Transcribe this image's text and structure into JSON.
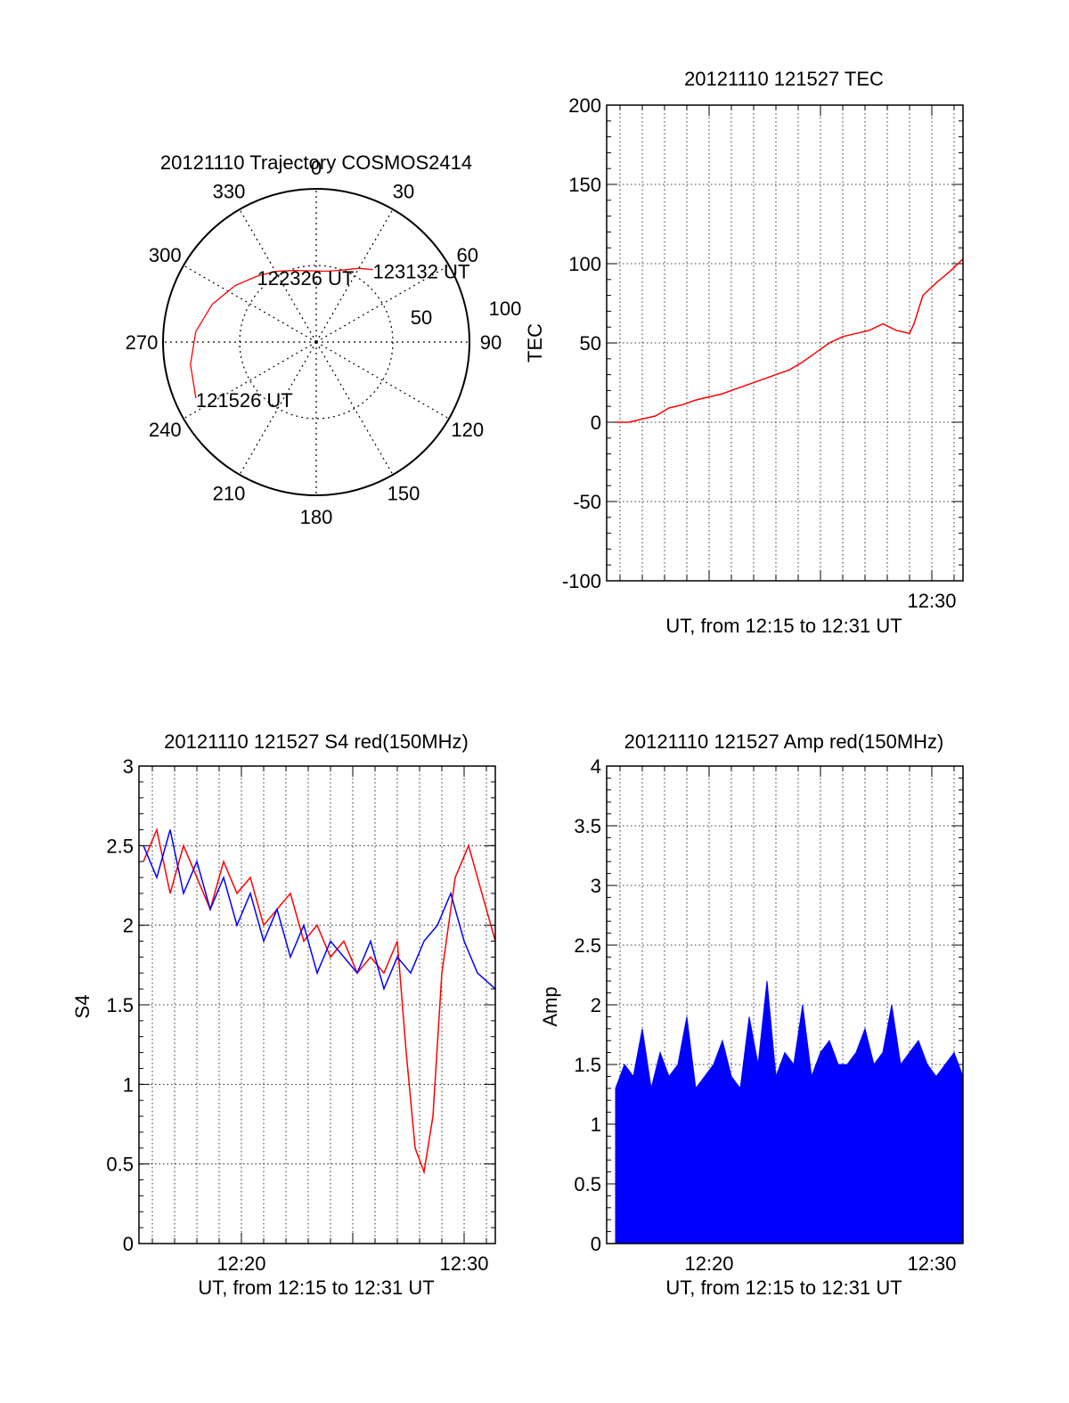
{
  "chart_data": [
    {
      "type": "polar",
      "title": "20121110 Trajectory COSMOS2414",
      "azimuth_labels": [
        "0",
        "30",
        "60",
        "90",
        "120",
        "150",
        "180",
        "210",
        "240",
        "270",
        "300",
        "330"
      ],
      "elevation_labels": [
        "100",
        "50"
      ],
      "series": [
        {
          "color": "#ff0000",
          "points": [
            {
              "az": 245,
              "el": 12
            },
            {
              "az": 260,
              "el": 15
            },
            {
              "az": 275,
              "el": 19
            },
            {
              "az": 290,
              "el": 25
            },
            {
              "az": 305,
              "el": 32
            },
            {
              "az": 318,
              "el": 38
            },
            {
              "az": 330,
              "el": 42
            },
            {
              "az": 343,
              "el": 46
            },
            {
              "az": 355,
              "el": 48
            },
            {
              "az": 8,
              "el": 48
            },
            {
              "az": 20,
              "el": 45
            },
            {
              "az": 30,
              "el": 40
            },
            {
              "az": 38,
              "el": 36
            }
          ]
        }
      ],
      "annotations": [
        {
          "text": "121526 UT",
          "az": 245,
          "el": 12
        },
        {
          "text": "122326 UT",
          "az": 318,
          "el": 38
        },
        {
          "text": "123132 UT",
          "az": 38,
          "el": 36
        }
      ]
    },
    {
      "type": "line",
      "title": "20121110 121527 TEC",
      "xlabel": "UT, from 12:15 to 12:31 UT",
      "ylabel": "TEC",
      "xlim": [
        15.4,
        31.4
      ],
      "ylim": [
        -100,
        200
      ],
      "yticks": [
        "-100",
        "-50",
        "0",
        "50",
        "100",
        "150",
        "200"
      ],
      "xticks": [
        {
          "value": 30,
          "label": "12:30"
        }
      ],
      "grid": true,
      "series": [
        {
          "color": "#ff0000",
          "x": [
            15.8,
            16.4,
            17,
            17.6,
            18.2,
            18.8,
            19.4,
            20,
            20.6,
            21.2,
            21.8,
            22.4,
            23,
            23.6,
            24.2,
            24.8,
            25.4,
            26,
            26.6,
            27.2,
            27.8,
            28.4,
            29,
            29.2,
            29.6,
            30.2,
            30.8,
            31.4
          ],
          "y": [
            0,
            0,
            2,
            4,
            9,
            11,
            14,
            16,
            18,
            21,
            24,
            27,
            30,
            33,
            38,
            44,
            50,
            54,
            56,
            58,
            62,
            58,
            56,
            62,
            80,
            88,
            95,
            103
          ]
        }
      ]
    },
    {
      "type": "line",
      "title": "20121110 121527 S4 red(150MHz)",
      "xlabel": "UT, from 12:15 to 12:31 UT",
      "ylabel": "S4",
      "xlim": [
        15.4,
        31.4
      ],
      "ylim": [
        0,
        3
      ],
      "yticks": [
        "0",
        "0.5",
        "1",
        "1.5",
        "2",
        "2.5",
        "3"
      ],
      "xticks": [
        {
          "value": 20,
          "label": "12:20"
        },
        {
          "value": 30,
          "label": "12:30"
        }
      ],
      "grid": true,
      "series": [
        {
          "color": "#ff0000",
          "x": [
            15.6,
            16.2,
            16.8,
            17.4,
            18,
            18.6,
            19.2,
            19.8,
            20.4,
            21,
            21.6,
            22.2,
            22.8,
            23.4,
            24,
            24.6,
            25.2,
            25.8,
            26.4,
            27,
            27.4,
            27.8,
            28.2,
            28.6,
            29,
            29.6,
            30.2,
            30.8,
            31.4
          ],
          "y": [
            2.4,
            2.6,
            2.2,
            2.5,
            2.3,
            2.1,
            2.4,
            2.2,
            2.3,
            2.0,
            2.1,
            2.2,
            1.9,
            2.0,
            1.8,
            1.9,
            1.7,
            1.8,
            1.7,
            1.9,
            1.2,
            0.6,
            0.45,
            0.8,
            1.7,
            2.3,
            2.5,
            2.2,
            1.9
          ]
        },
        {
          "color": "#0000ff",
          "x": [
            15.6,
            16.2,
            16.8,
            17.4,
            18,
            18.6,
            19.2,
            19.8,
            20.4,
            21,
            21.6,
            22.2,
            22.8,
            23.4,
            24,
            24.6,
            25.2,
            25.8,
            26.4,
            27,
            27.6,
            28.2,
            28.8,
            29.4,
            30,
            30.6,
            31.4
          ],
          "y": [
            2.5,
            2.3,
            2.6,
            2.2,
            2.4,
            2.1,
            2.3,
            2.0,
            2.2,
            1.9,
            2.1,
            1.8,
            2.0,
            1.7,
            1.9,
            1.8,
            1.7,
            1.9,
            1.6,
            1.8,
            1.7,
            1.9,
            2.0,
            2.2,
            1.9,
            1.7,
            1.6
          ]
        }
      ]
    },
    {
      "type": "area",
      "title": "20121110 121527 Amp red(150MHz)",
      "xlabel": "UT, from 12:15 to 12:31 UT",
      "ylabel": "Amp",
      "xlim": [
        15.4,
        31.4
      ],
      "ylim": [
        0,
        4
      ],
      "yticks": [
        "0",
        "0.5",
        "1",
        "1.5",
        "2",
        "2.5",
        "3",
        "3.5",
        "4"
      ],
      "xticks": [
        {
          "value": 20,
          "label": "12:20"
        },
        {
          "value": 30,
          "label": "12:30"
        }
      ],
      "grid": true,
      "series": [
        {
          "color": "#0000ff",
          "x": [
            15.8,
            16.2,
            16.6,
            17,
            17.4,
            17.8,
            18.2,
            18.6,
            19,
            19.4,
            19.8,
            20.2,
            20.6,
            21,
            21.4,
            21.8,
            22.2,
            22.6,
            23,
            23.4,
            23.8,
            24.2,
            24.6,
            25,
            25.4,
            25.8,
            26.2,
            26.6,
            27,
            27.4,
            27.8,
            28.2,
            28.6,
            29,
            29.4,
            29.8,
            30.2,
            30.6,
            31,
            31.4
          ],
          "y": [
            1.3,
            1.5,
            1.4,
            1.8,
            1.3,
            1.6,
            1.4,
            1.5,
            1.9,
            1.3,
            1.4,
            1.5,
            1.7,
            1.4,
            1.3,
            1.9,
            1.5,
            2.2,
            1.4,
            1.6,
            1.5,
            2.0,
            1.4,
            1.6,
            1.7,
            1.5,
            1.5,
            1.6,
            1.8,
            1.5,
            1.6,
            2.0,
            1.5,
            1.6,
            1.7,
            1.5,
            1.4,
            1.5,
            1.6,
            1.4
          ]
        }
      ]
    }
  ]
}
